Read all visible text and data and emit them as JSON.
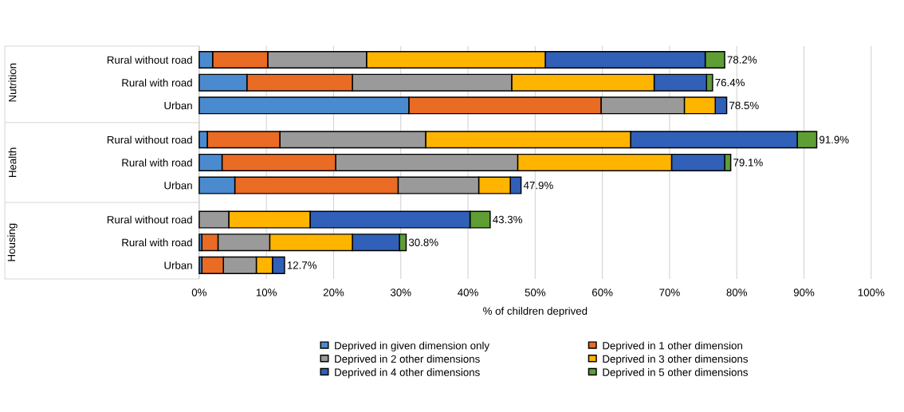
{
  "chart_data": {
    "type": "bar",
    "orientation": "horizontal",
    "stacked": true,
    "categories": [
      "Rural without road",
      "Rural with road",
      "Urban",
      "Rural without road",
      "Rural with road",
      "Urban",
      "Rural without road",
      "Rural with road",
      "Urban"
    ],
    "series": [
      {
        "name": "Deprived in given dimension only",
        "color": "#4a8bd0",
        "values": [
          2.0,
          7.1,
          31.2,
          1.2,
          3.4,
          5.3,
          0,
          0.4,
          0.4
        ]
      },
      {
        "name": "Deprived in 1 other dimension",
        "color": "#e96b24",
        "values": [
          8.2,
          15.7,
          28.6,
          10.8,
          16.9,
          24.3,
          0,
          2.4,
          3.2
        ]
      },
      {
        "name": "Deprived in 2 other dimensions",
        "color": "#9a9a9a",
        "values": [
          14.7,
          23.7,
          12.4,
          21.7,
          27.1,
          12.0,
          4.4,
          7.7,
          4.9
        ]
      },
      {
        "name": "Deprived in 3 other dimensions",
        "color": "#ffb400",
        "values": [
          26.6,
          21.2,
          4.6,
          30.5,
          22.9,
          4.7,
          12.1,
          12.3,
          2.4
        ]
      },
      {
        "name": "Deprived in 4 other dimensions",
        "color": "#3060b8",
        "values": [
          23.8,
          7.8,
          1.7,
          24.8,
          7.9,
          1.6,
          23.8,
          7.0,
          1.8
        ]
      },
      {
        "name": "Deprived in 5 other dimensions",
        "color": "#5e9e35",
        "values": [
          2.9,
          0.9,
          0,
          2.9,
          0.9,
          0,
          3.0,
          1.0,
          0
        ]
      }
    ],
    "totals": [
      "78.2%",
      "76.4%",
      "78.5%",
      "91.9%",
      "79.1%",
      "47.9%",
      "43.3%",
      "30.8%",
      "12.7%"
    ],
    "annotations": [
      "Nutrition",
      "Health",
      "Housing"
    ],
    "xlabel": "% of children deprived",
    "xlim": [
      0,
      100
    ],
    "xticks": [
      {
        "value": 0,
        "label": "0%"
      },
      {
        "value": 10,
        "label": "10%"
      },
      {
        "value": 20,
        "label": "20%"
      },
      {
        "value": 30,
        "label": "30%"
      },
      {
        "value": 40,
        "label": "40%"
      },
      {
        "value": 50,
        "label": "50%"
      },
      {
        "value": 60,
        "label": "60%"
      },
      {
        "value": 70,
        "label": "70%"
      },
      {
        "value": 80,
        "label": "80%"
      },
      {
        "value": 90,
        "label": "90%"
      },
      {
        "value": 100,
        "label": "100%"
      }
    ],
    "grid": "x",
    "legend": "bottom"
  }
}
